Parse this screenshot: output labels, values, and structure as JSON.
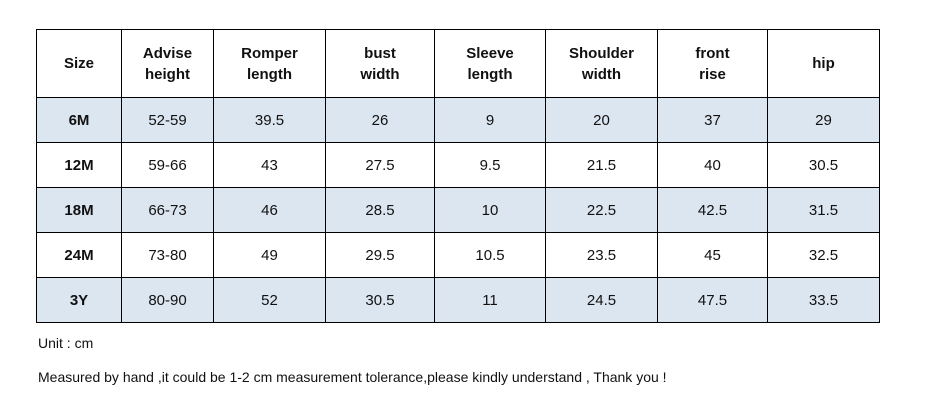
{
  "table": {
    "header": [
      [
        "Size"
      ],
      [
        "Advise",
        "height"
      ],
      [
        "Romper",
        "length"
      ],
      [
        "bust",
        "width"
      ],
      [
        "Sleeve",
        "length"
      ],
      [
        "Shoulder",
        "width"
      ],
      [
        "front",
        "rise"
      ],
      [
        "hip"
      ]
    ],
    "rows": [
      [
        "6M",
        "52-59",
        "39.5",
        "26",
        "9",
        "20",
        "37",
        "29"
      ],
      [
        "12M",
        "59-66",
        "43",
        "27.5",
        "9.5",
        "21.5",
        "40",
        "30.5"
      ],
      [
        "18M",
        "66-73",
        "46",
        "28.5",
        "10",
        "22.5",
        "42.5",
        "31.5"
      ],
      [
        "24M",
        "73-80",
        "49",
        "29.5",
        "10.5",
        "23.5",
        "45",
        "32.5"
      ],
      [
        "3Y",
        "80-90",
        "52",
        "30.5",
        "11",
        "24.5",
        "47.5",
        "33.5"
      ]
    ]
  },
  "notes": [
    "Unit : cm",
    "Measured by hand ,it could be 1-2 cm measurement tolerance,please kindly understand , Thank you !"
  ]
}
